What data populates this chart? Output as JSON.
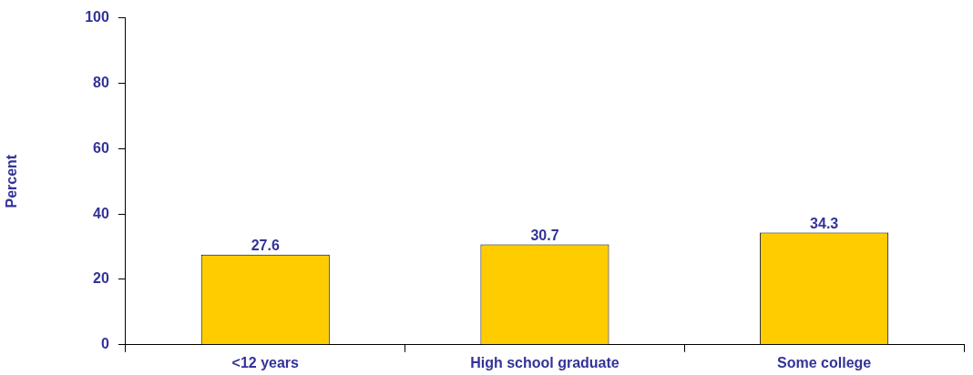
{
  "chart_data": {
    "type": "bar",
    "ylabel": "Percent",
    "categories": [
      "<12 years",
      "High school graduate",
      "Some college"
    ],
    "values": [
      27.6,
      30.7,
      34.3
    ],
    "color": "#ffcc00",
    "ylim": [
      0,
      100
    ],
    "yticks": [
      0,
      20,
      40,
      60,
      80,
      100
    ],
    "grid": false,
    "legend": false,
    "data_labels": true
  }
}
